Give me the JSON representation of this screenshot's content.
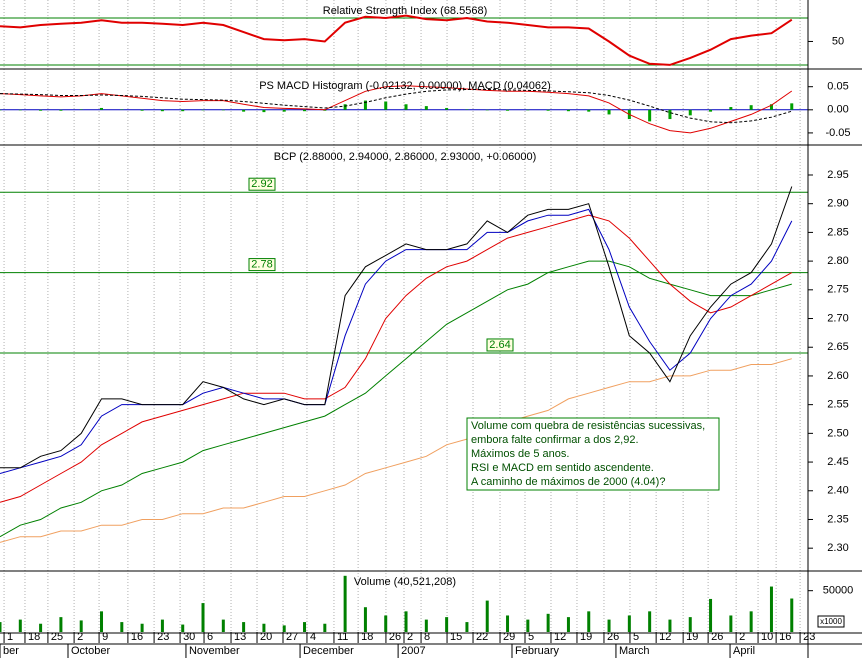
{
  "chart_data": [
    {
      "type": "line",
      "title": "Relative Strength Index (68.5568)",
      "xlim": [
        0,
        39.8
      ],
      "ylim": [
        27.4,
        83.6
      ],
      "yticks": [
        50
      ],
      "levels": [
        70,
        30
      ],
      "level_color": "#008000",
      "series": [
        {
          "color": "#e00000",
          "values": [
            63,
            62,
            64,
            65,
            66,
            68,
            66,
            66,
            65,
            64,
            66,
            64,
            58,
            52,
            51,
            52,
            50,
            66,
            71,
            70,
            72,
            69,
            68,
            70,
            67,
            66,
            64,
            62,
            62,
            61,
            50,
            38,
            31,
            30,
            36,
            43,
            52,
            55,
            57,
            68.56
          ]
        }
      ]
    },
    {
      "type": "line",
      "title": "PS MACD Histogram (-0.02132, 0.00000), MACD (0.04062)",
      "xlim": [
        0,
        39.8
      ],
      "ylim": [
        -0.074,
        0.071
      ],
      "yticks": [
        0.05,
        {
          "value": 0,
          "label": "0.00"
        },
        -0.05
      ],
      "levels": [
        0
      ],
      "level_color": "#0000c0",
      "series": [
        {
          "color": "#00a000",
          "mark": "bar",
          "values": [
            0,
            -0.001,
            -0.002,
            -0.002,
            0.001,
            0.004,
            0.001,
            -0.002,
            -0.003,
            -0.003,
            -0.001,
            -0.001,
            -0.004,
            -0.005,
            -0.004,
            -0.003,
            -0.002,
            0.012,
            0.02,
            0.018,
            0.012,
            0.008,
            0.004,
            0.001,
            -0.001,
            -0.002,
            -0.001,
            -0.002,
            -0.003,
            -0.004,
            -0.01,
            -0.02,
            -0.025,
            -0.02,
            -0.012,
            -0.004,
            0.006,
            0.01,
            0.012,
            0.014
          ]
        },
        {
          "color": "#e00000",
          "values": [
            0.035,
            0.033,
            0.03,
            0.028,
            0.03,
            0.035,
            0.03,
            0.025,
            0.02,
            0.018,
            0.02,
            0.02,
            0.012,
            0.005,
            0.003,
            0.002,
            0,
            0.02,
            0.04,
            0.05,
            0.052,
            0.05,
            0.048,
            0.045,
            0.042,
            0.04,
            0.04,
            0.038,
            0.035,
            0.03,
            0.015,
            -0.01,
            -0.03,
            -0.045,
            -0.05,
            -0.04,
            -0.025,
            -0.01,
            0.01,
            0.04062
          ]
        },
        {
          "color": "#000000",
          "dash": true,
          "values": [
            0.035,
            0.034,
            0.033,
            0.031,
            0.031,
            0.032,
            0.031,
            0.029,
            0.026,
            0.023,
            0.022,
            0.021,
            0.018,
            0.014,
            0.01,
            0.007,
            0.004,
            0.008,
            0.016,
            0.026,
            0.034,
            0.04,
            0.043,
            0.044,
            0.044,
            0.043,
            0.042,
            0.041,
            0.039,
            0.037,
            0.031,
            0.021,
            0.008,
            -0.006,
            -0.018,
            -0.026,
            -0.028,
            -0.024,
            -0.016,
            -0.003
          ]
        }
      ]
    },
    {
      "type": "line",
      "title": "BCP (2.88000, 2.94000, 2.86000, 2.93000, +0.06000)",
      "xlim": [
        0,
        39.8
      ],
      "ylim": [
        2.262,
        2.997
      ],
      "yticks": [
        {
          "value": 2.3,
          "label": "2.30"
        },
        2.35,
        {
          "value": 2.4,
          "label": "2.40"
        },
        2.45,
        {
          "value": 2.5,
          "label": "2.50"
        },
        2.55,
        {
          "value": 2.6,
          "label": "2.60"
        },
        2.65,
        {
          "value": 2.7,
          "label": "2.70"
        },
        2.75,
        {
          "value": 2.8,
          "label": "2.80"
        },
        2.85,
        {
          "value": 2.9,
          "label": "2.90"
        },
        2.95
      ],
      "levels": [
        {
          "value": 2.92,
          "label": "2.92"
        },
        {
          "value": 2.78,
          "label": "2.78"
        },
        {
          "value": 2.64,
          "label": "2.64"
        }
      ],
      "level_color": "#008000",
      "series": [
        {
          "color": "#f0a060",
          "values": [
            2.31,
            2.32,
            2.32,
            2.33,
            2.33,
            2.34,
            2.34,
            2.35,
            2.35,
            2.36,
            2.36,
            2.37,
            2.37,
            2.38,
            2.39,
            2.39,
            2.4,
            2.41,
            2.43,
            2.44,
            2.45,
            2.46,
            2.48,
            2.49,
            2.5,
            2.52,
            2.53,
            2.54,
            2.56,
            2.57,
            2.58,
            2.59,
            2.59,
            2.6,
            2.6,
            2.61,
            2.61,
            2.62,
            2.62,
            2.63
          ]
        },
        {
          "color": "#008000",
          "values": [
            2.32,
            2.34,
            2.35,
            2.37,
            2.38,
            2.4,
            2.41,
            2.43,
            2.44,
            2.45,
            2.47,
            2.48,
            2.49,
            2.5,
            2.51,
            2.52,
            2.53,
            2.55,
            2.57,
            2.6,
            2.63,
            2.66,
            2.69,
            2.71,
            2.73,
            2.75,
            2.76,
            2.78,
            2.79,
            2.8,
            2.8,
            2.79,
            2.77,
            2.76,
            2.75,
            2.74,
            2.74,
            2.74,
            2.75,
            2.76
          ]
        },
        {
          "color": "#e00000",
          "values": [
            2.38,
            2.39,
            2.41,
            2.43,
            2.45,
            2.48,
            2.5,
            2.52,
            2.53,
            2.54,
            2.55,
            2.56,
            2.57,
            2.57,
            2.57,
            2.56,
            2.56,
            2.58,
            2.63,
            2.7,
            2.74,
            2.77,
            2.79,
            2.8,
            2.82,
            2.84,
            2.85,
            2.86,
            2.87,
            2.88,
            2.87,
            2.84,
            2.8,
            2.76,
            2.73,
            2.71,
            2.72,
            2.74,
            2.76,
            2.78
          ]
        },
        {
          "color": "#0000c0",
          "values": [
            2.43,
            2.44,
            2.45,
            2.46,
            2.48,
            2.53,
            2.55,
            2.55,
            2.55,
            2.55,
            2.57,
            2.58,
            2.57,
            2.56,
            2.56,
            2.55,
            2.55,
            2.67,
            2.76,
            2.8,
            2.82,
            2.82,
            2.82,
            2.82,
            2.85,
            2.85,
            2.87,
            2.88,
            2.88,
            2.89,
            2.82,
            2.72,
            2.66,
            2.61,
            2.64,
            2.7,
            2.74,
            2.76,
            2.8,
            2.87
          ]
        },
        {
          "color": "#000000",
          "values": [
            2.44,
            2.44,
            2.46,
            2.47,
            2.5,
            2.56,
            2.56,
            2.55,
            2.55,
            2.55,
            2.59,
            2.58,
            2.56,
            2.55,
            2.56,
            2.55,
            2.55,
            2.74,
            2.79,
            2.81,
            2.83,
            2.82,
            2.82,
            2.83,
            2.87,
            2.85,
            2.88,
            2.89,
            2.89,
            2.9,
            2.79,
            2.67,
            2.64,
            2.59,
            2.67,
            2.72,
            2.76,
            2.78,
            2.83,
            2.93
          ]
        }
      ],
      "annotation": [
        "Volume com quebra de resistências sucessivas,",
        "embora falte confirmar a dos 2,92.",
        "Máximos de 5 anos.",
        "RSI e MACD em sentido ascendente.",
        "A caminho de máximos de 2000 (4.04)?"
      ]
    },
    {
      "type": "bar",
      "title": "Volume (40,521,208)",
      "xlim": [
        0,
        39.8
      ],
      "ylim": [
        0,
        71400
      ],
      "yticks": [
        50000
      ],
      "unit_label": "x1000",
      "color": "#008000",
      "values": [
        12000,
        15000,
        10000,
        18000,
        14000,
        25000,
        12000,
        10000,
        15000,
        9000,
        35000,
        15000,
        12000,
        10000,
        8000,
        12000,
        10000,
        68000,
        30000,
        20000,
        25000,
        15000,
        18000,
        12000,
        38000,
        20000,
        15000,
        22000,
        18000,
        25000,
        15000,
        20000,
        25000,
        15000,
        18000,
        40000,
        20000,
        25000,
        55000,
        40521
      ],
      "xticks": [
        {
          "value": 0.2,
          "label": "1"
        },
        {
          "value": 1.23,
          "label": "18"
        },
        {
          "value": 2.36,
          "label": "25"
        },
        {
          "value": 3.65,
          "label": "2"
        },
        {
          "value": 4.88,
          "label": "9"
        },
        {
          "value": 6.3,
          "label": "16"
        },
        {
          "value": 7.59,
          "label": "23"
        },
        {
          "value": 8.87,
          "label": "30"
        },
        {
          "value": 10.05,
          "label": "6"
        },
        {
          "value": 11.38,
          "label": "13"
        },
        {
          "value": 12.66,
          "label": "20"
        },
        {
          "value": 13.94,
          "label": "27"
        },
        {
          "value": 15.12,
          "label": "4"
        },
        {
          "value": 16.45,
          "label": "11"
        },
        {
          "value": 17.64,
          "label": "18"
        },
        {
          "value": 19.01,
          "label": "26"
        },
        {
          "value": 19.9,
          "label": "2"
        },
        {
          "value": 20.74,
          "label": "8"
        },
        {
          "value": 22.02,
          "label": "15"
        },
        {
          "value": 23.3,
          "label": "22"
        },
        {
          "value": 24.63,
          "label": "29"
        },
        {
          "value": 25.86,
          "label": "5"
        },
        {
          "value": 27.14,
          "label": "12"
        },
        {
          "value": 28.42,
          "label": "19"
        },
        {
          "value": 29.75,
          "label": "26"
        },
        {
          "value": 31.03,
          "label": "5"
        },
        {
          "value": 32.32,
          "label": "12"
        },
        {
          "value": 33.65,
          "label": "19"
        },
        {
          "value": 34.88,
          "label": "26"
        },
        {
          "value": 36.26,
          "label": "2"
        },
        {
          "value": 37.34,
          "label": "10"
        },
        {
          "value": 38.23,
          "label": "16"
        },
        {
          "value": 39.41,
          "label": "23"
        }
      ],
      "month_ticks": [
        {
          "value": 0,
          "label": "ber"
        },
        {
          "value": 3.35,
          "label": "October"
        },
        {
          "value": 9.16,
          "label": "November"
        },
        {
          "value": 14.78,
          "label": "December"
        },
        {
          "value": 19.61,
          "label": "2007"
        },
        {
          "value": 25.22,
          "label": "February"
        },
        {
          "value": 30.34,
          "label": "March"
        },
        {
          "value": 35.96,
          "label": "April"
        }
      ]
    }
  ]
}
